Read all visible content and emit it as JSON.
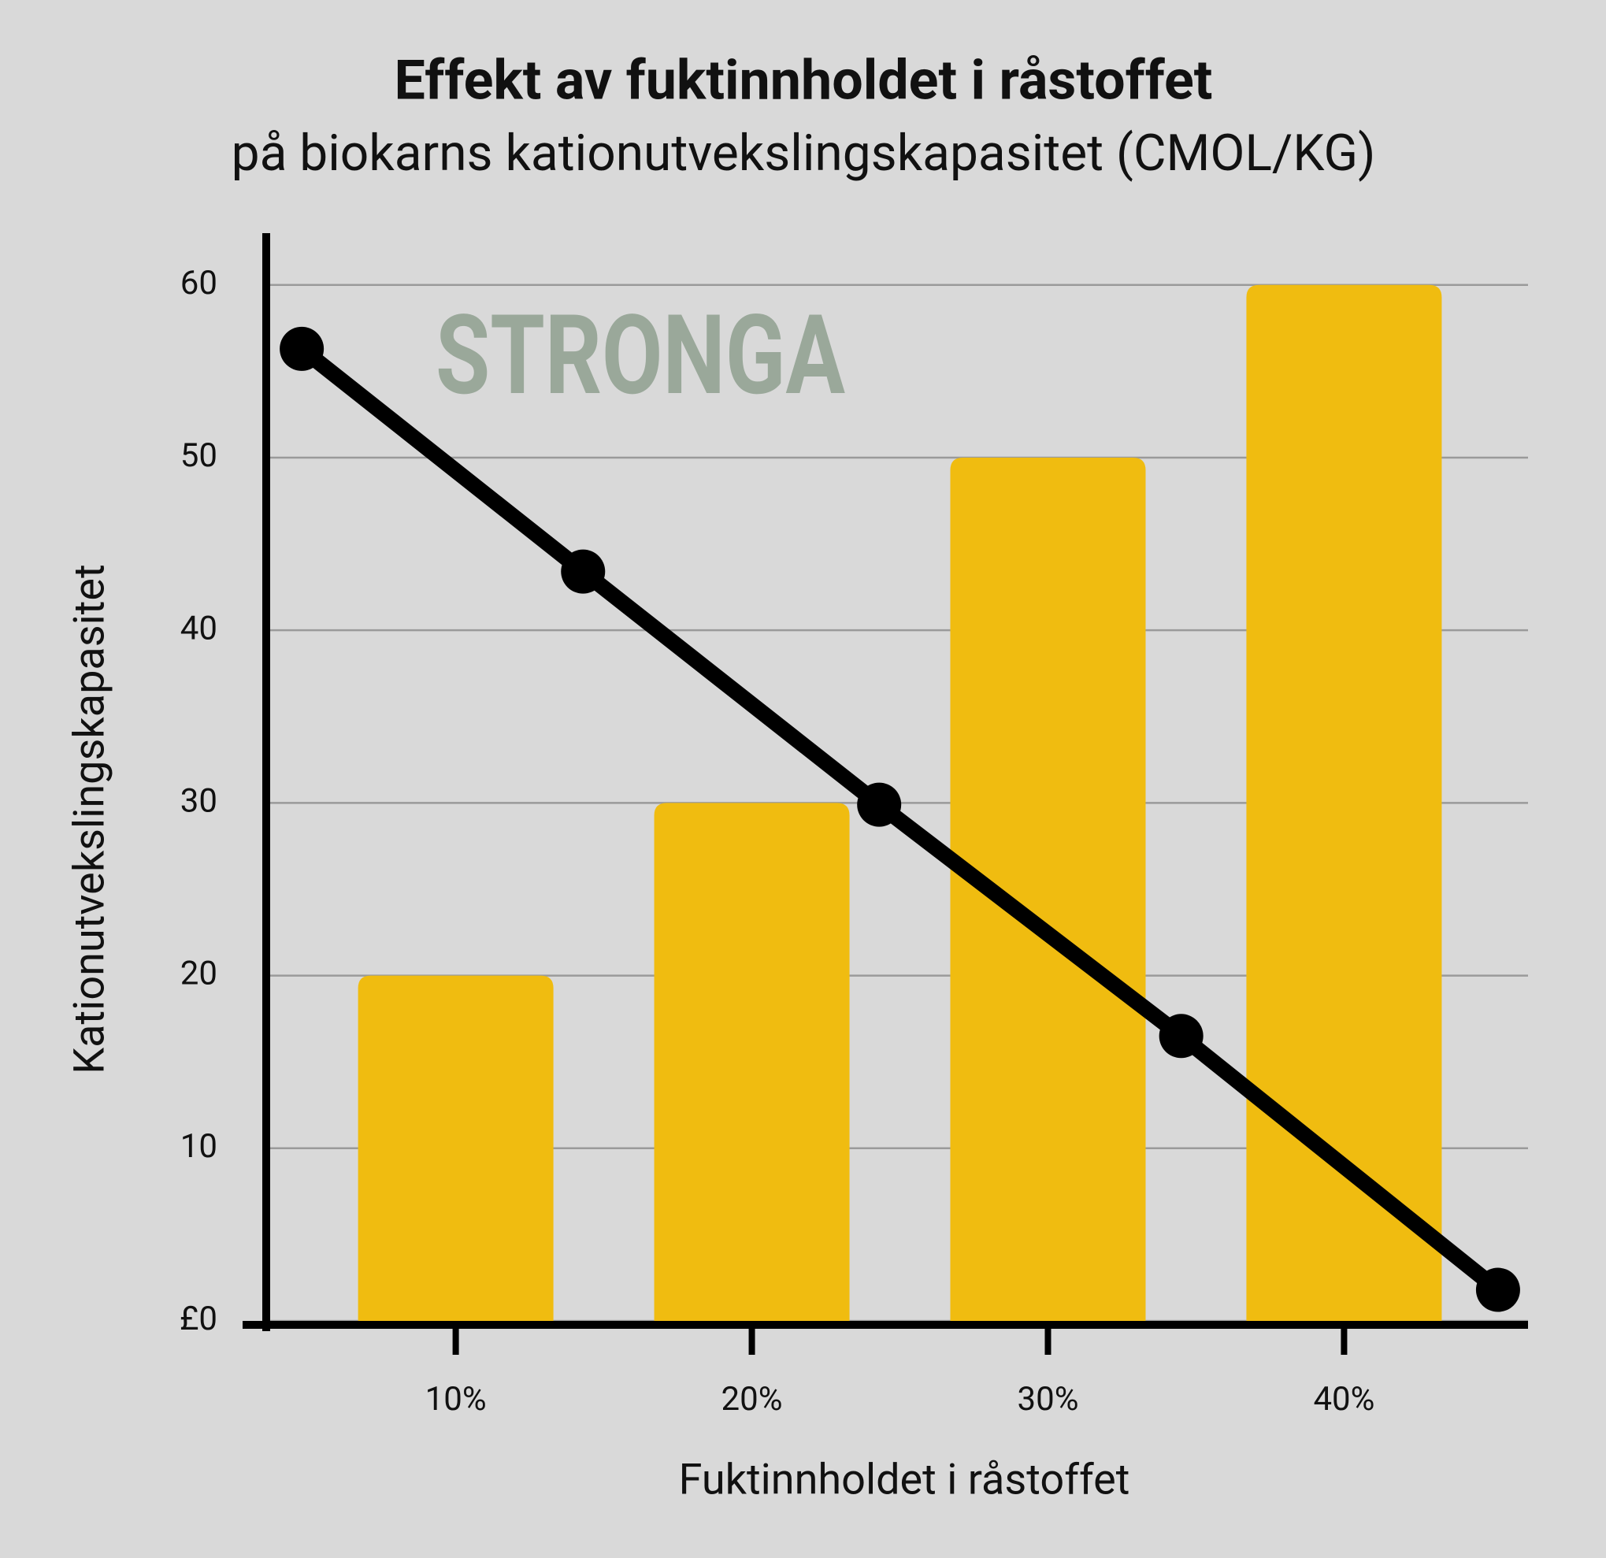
{
  "chart_data": {
    "type": "bar",
    "title": "Effekt av fuktinnholdet i råstoffet",
    "subtitle": "på biokarns kationutvekslingskapasitet (CMOL/KG)",
    "x_label": "Fuktinnholdet i råstoffet",
    "y_label": "Kationutvekslingskapasitet",
    "annotation": "STRONGA",
    "series": [
      {
        "type": "bar",
        "color": "#f0bc10",
        "x": [
          10,
          20,
          30,
          40
        ],
        "values": [
          20,
          30,
          50,
          60
        ]
      },
      {
        "type": "line",
        "color": "#000000",
        "x": [
          4.8,
          14.3,
          24.3,
          34.5,
          45.2
        ],
        "values": [
          56.3,
          43.4,
          29.9,
          16.5,
          1.8
        ]
      }
    ],
    "xlim": [
      3.6,
      46
    ],
    "xticks": [
      {
        "value": 10,
        "label": "10%"
      },
      {
        "value": 20,
        "label": "20%"
      },
      {
        "value": 30,
        "label": "30%"
      },
      {
        "value": 40,
        "label": "40%"
      }
    ],
    "ylim": [
      0,
      63
    ],
    "yticks": [
      {
        "value": 0,
        "label": "£0"
      },
      10,
      20,
      30,
      40,
      50,
      60
    ],
    "grid": true
  }
}
